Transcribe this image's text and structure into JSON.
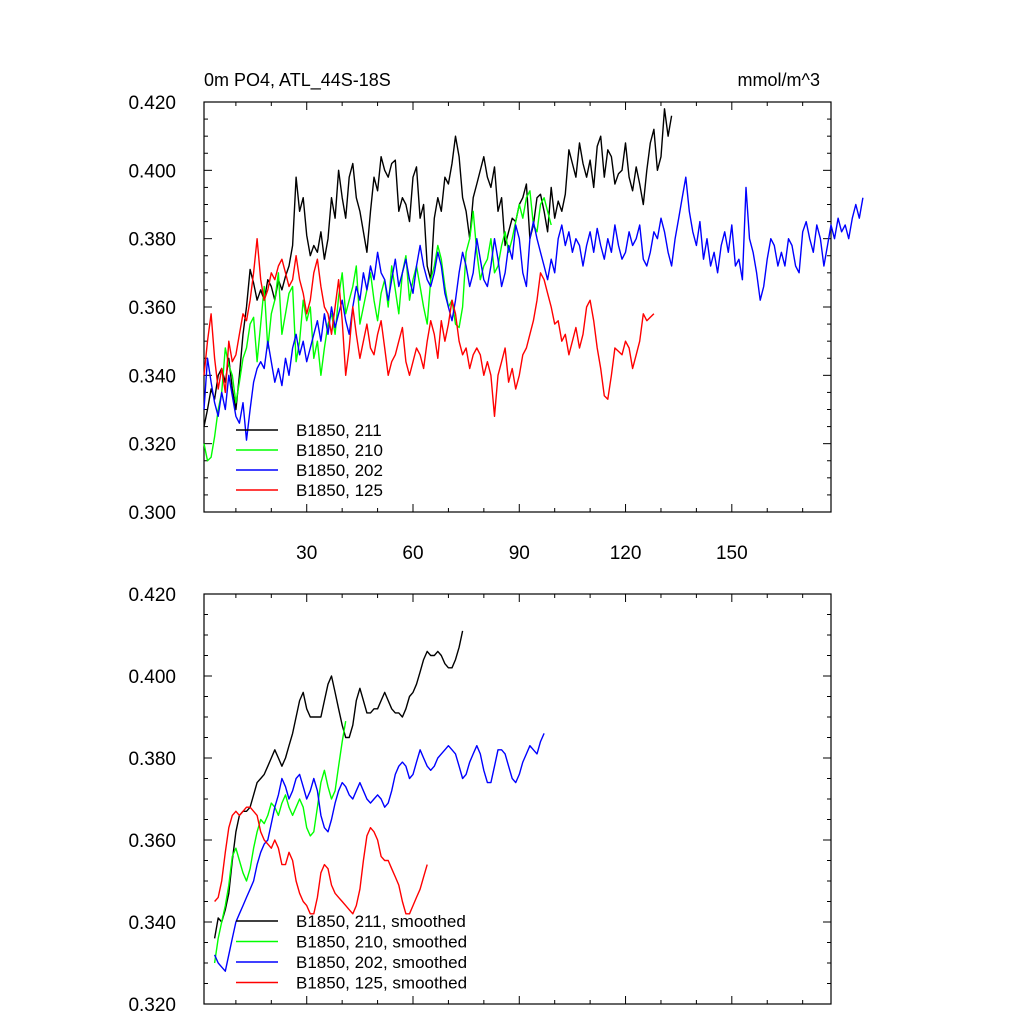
{
  "chart_data": [
    {
      "type": "line",
      "title": "0m PO4, ATL_44S-18S",
      "units": "mmol/m^3",
      "xlim": [
        1,
        178
      ],
      "ylim": [
        0.3,
        0.42
      ],
      "xticks": [
        30,
        60,
        90,
        120,
        150
      ],
      "yticks": [
        0.3,
        0.32,
        0.34,
        0.36,
        0.38,
        0.4,
        0.42
      ],
      "grid": false,
      "legend_position": "bottom-left",
      "series": [
        {
          "name": "B1850, 211",
          "color": "#000000",
          "x_start": 1,
          "values": [
            0.325,
            0.33,
            0.336,
            0.333,
            0.34,
            0.342,
            0.338,
            0.345,
            0.336,
            0.33,
            0.34,
            0.352,
            0.36,
            0.371,
            0.367,
            0.362,
            0.365,
            0.362,
            0.368,
            0.366,
            0.362,
            0.368,
            0.365,
            0.369,
            0.372,
            0.378,
            0.398,
            0.388,
            0.392,
            0.381,
            0.375,
            0.378,
            0.376,
            0.382,
            0.374,
            0.38,
            0.392,
            0.386,
            0.4,
            0.392,
            0.386,
            0.398,
            0.402,
            0.392,
            0.388,
            0.382,
            0.376,
            0.388,
            0.398,
            0.394,
            0.404,
            0.4,
            0.398,
            0.402,
            0.403,
            0.388,
            0.392,
            0.39,
            0.385,
            0.398,
            0.401,
            0.386,
            0.39,
            0.372,
            0.368,
            0.386,
            0.392,
            0.388,
            0.398,
            0.396,
            0.402,
            0.41,
            0.404,
            0.392,
            0.388,
            0.38,
            0.392,
            0.396,
            0.4,
            0.404,
            0.398,
            0.395,
            0.401,
            0.388,
            0.392,
            0.378,
            0.382,
            0.386,
            0.385,
            0.39,
            0.392,
            0.396,
            0.38,
            0.384,
            0.392,
            0.393,
            0.388,
            0.382,
            0.395,
            0.386,
            0.391,
            0.388,
            0.393,
            0.406,
            0.402,
            0.398,
            0.408,
            0.402,
            0.398,
            0.403,
            0.395,
            0.407,
            0.41,
            0.398,
            0.406,
            0.404,
            0.396,
            0.399,
            0.4,
            0.408,
            0.398,
            0.394,
            0.401,
            0.396,
            0.39,
            0.4,
            0.408,
            0.412,
            0.4,
            0.404,
            0.418,
            0.41,
            0.416
          ]
        },
        {
          "name": "B1850, 210",
          "color": "#00ff00",
          "x_start": 1,
          "values": [
            0.32,
            0.315,
            0.316,
            0.322,
            0.33,
            0.335,
            0.348,
            0.343,
            0.34,
            0.332,
            0.338,
            0.345,
            0.348,
            0.355,
            0.357,
            0.344,
            0.355,
            0.366,
            0.348,
            0.358,
            0.362,
            0.37,
            0.352,
            0.358,
            0.364,
            0.366,
            0.344,
            0.35,
            0.362,
            0.356,
            0.36,
            0.345,
            0.35,
            0.34,
            0.348,
            0.355,
            0.358,
            0.352,
            0.363,
            0.37,
            0.358,
            0.362,
            0.366,
            0.372,
            0.355,
            0.36,
            0.365,
            0.37,
            0.362,
            0.356,
            0.364,
            0.368,
            0.36,
            0.372,
            0.365,
            0.358,
            0.37,
            0.375,
            0.362,
            0.368,
            0.372,
            0.366,
            0.36,
            0.355,
            0.368,
            0.372,
            0.378,
            0.374,
            0.366,
            0.36,
            0.362,
            0.355,
            0.354,
            0.36,
            0.376,
            0.38,
            0.388,
            0.376,
            0.368,
            0.372,
            0.374,
            0.38,
            0.37,
            0.372,
            0.378,
            0.382,
            0.376,
            0.38,
            0.385,
            0.39,
            0.386,
            0.392,
            0.394,
            0.384,
            0.382,
            0.39,
            0.392,
            0.388,
            0.384
          ]
        },
        {
          "name": "B1850, 202",
          "color": "#0000ff",
          "x_start": 1,
          "values": [
            0.33,
            0.345,
            0.338,
            0.332,
            0.328,
            0.335,
            0.33,
            0.34,
            0.334,
            0.328,
            0.326,
            0.332,
            0.321,
            0.33,
            0.338,
            0.342,
            0.344,
            0.342,
            0.35,
            0.344,
            0.338,
            0.342,
            0.337,
            0.345,
            0.34,
            0.348,
            0.352,
            0.346,
            0.35,
            0.344,
            0.348,
            0.352,
            0.356,
            0.35,
            0.358,
            0.352,
            0.36,
            0.354,
            0.358,
            0.362,
            0.356,
            0.352,
            0.36,
            0.366,
            0.362,
            0.37,
            0.365,
            0.372,
            0.368,
            0.376,
            0.37,
            0.368,
            0.362,
            0.368,
            0.374,
            0.366,
            0.37,
            0.374,
            0.368,
            0.364,
            0.372,
            0.378,
            0.372,
            0.368,
            0.366,
            0.37,
            0.376,
            0.372,
            0.364,
            0.36,
            0.356,
            0.362,
            0.37,
            0.376,
            0.372,
            0.366,
            0.37,
            0.38,
            0.374,
            0.368,
            0.366,
            0.372,
            0.38,
            0.374,
            0.366,
            0.37,
            0.378,
            0.374,
            0.384,
            0.38,
            0.37,
            0.366,
            0.38,
            0.385,
            0.38,
            0.376,
            0.372,
            0.368,
            0.374,
            0.37,
            0.38,
            0.384,
            0.378,
            0.382,
            0.376,
            0.38,
            0.378,
            0.372,
            0.378,
            0.382,
            0.376,
            0.383,
            0.378,
            0.374,
            0.38,
            0.376,
            0.384,
            0.378,
            0.374,
            0.376,
            0.382,
            0.378,
            0.38,
            0.384,
            0.374,
            0.372,
            0.376,
            0.382,
            0.38,
            0.386,
            0.382,
            0.376,
            0.372,
            0.38,
            0.386,
            0.392,
            0.398,
            0.388,
            0.382,
            0.378,
            0.385,
            0.374,
            0.38,
            0.372,
            0.376,
            0.37,
            0.378,
            0.382,
            0.376,
            0.384,
            0.372,
            0.374,
            0.368,
            0.395,
            0.38,
            0.376,
            0.37,
            0.362,
            0.366,
            0.374,
            0.38,
            0.378,
            0.372,
            0.376,
            0.372,
            0.38,
            0.378,
            0.372,
            0.37,
            0.382,
            0.385,
            0.38,
            0.376,
            0.384,
            0.38,
            0.372,
            0.378,
            0.384,
            0.38,
            0.386,
            0.382,
            0.384,
            0.38,
            0.386,
            0.39,
            0.386,
            0.392
          ]
        },
        {
          "name": "B1850, 125",
          "color": "#ff0000",
          "x_start": 1,
          "values": [
            0.34,
            0.35,
            0.358,
            0.345,
            0.336,
            0.342,
            0.335,
            0.35,
            0.344,
            0.346,
            0.352,
            0.358,
            0.356,
            0.362,
            0.37,
            0.38,
            0.368,
            0.362,
            0.365,
            0.37,
            0.368,
            0.372,
            0.374,
            0.37,
            0.366,
            0.368,
            0.375,
            0.368,
            0.364,
            0.358,
            0.362,
            0.37,
            0.374,
            0.366,
            0.36,
            0.358,
            0.352,
            0.36,
            0.368,
            0.356,
            0.34,
            0.348,
            0.36,
            0.352,
            0.345,
            0.35,
            0.355,
            0.348,
            0.346,
            0.352,
            0.356,
            0.348,
            0.34,
            0.344,
            0.346,
            0.35,
            0.354,
            0.344,
            0.34,
            0.344,
            0.348,
            0.346,
            0.342,
            0.35,
            0.356,
            0.352,
            0.345,
            0.356,
            0.35,
            0.355,
            0.362,
            0.358,
            0.35,
            0.346,
            0.348,
            0.342,
            0.346,
            0.348,
            0.346,
            0.34,
            0.344,
            0.34,
            0.328,
            0.34,
            0.344,
            0.348,
            0.338,
            0.342,
            0.336,
            0.34,
            0.346,
            0.348,
            0.352,
            0.356,
            0.362,
            0.37,
            0.368,
            0.364,
            0.36,
            0.355,
            0.356,
            0.35,
            0.352,
            0.346,
            0.35,
            0.354,
            0.348,
            0.352,
            0.36,
            0.362,
            0.356,
            0.348,
            0.342,
            0.334,
            0.333,
            0.34,
            0.348,
            0.347,
            0.346,
            0.35,
            0.348,
            0.342,
            0.346,
            0.35,
            0.358,
            0.356,
            0.357,
            0.358
          ]
        }
      ]
    },
    {
      "type": "line",
      "xlim": [
        1,
        178
      ],
      "ylim": [
        0.32,
        0.42
      ],
      "yticks": [
        0.32,
        0.34,
        0.36,
        0.38,
        0.4,
        0.42
      ],
      "grid": false,
      "legend_position": "bottom-left",
      "series": [
        {
          "name": "B1850, 211, smoothed",
          "color": "#000000",
          "x_start": 4,
          "values": [
            0.336,
            0.341,
            0.34,
            0.343,
            0.347,
            0.355,
            0.362,
            0.366,
            0.367,
            0.367,
            0.368,
            0.371,
            0.374,
            0.375,
            0.376,
            0.378,
            0.38,
            0.382,
            0.38,
            0.378,
            0.38,
            0.383,
            0.386,
            0.39,
            0.394,
            0.396,
            0.392,
            0.39,
            0.39,
            0.39,
            0.39,
            0.394,
            0.398,
            0.4,
            0.396,
            0.392,
            0.388,
            0.385,
            0.385,
            0.388,
            0.394,
            0.397,
            0.394,
            0.391,
            0.391,
            0.392,
            0.392,
            0.394,
            0.396,
            0.394,
            0.392,
            0.391,
            0.391,
            0.39,
            0.392,
            0.395,
            0.396,
            0.398,
            0.401,
            0.404,
            0.406,
            0.405,
            0.405,
            0.406,
            0.405,
            0.403,
            0.402,
            0.402,
            0.404,
            0.407,
            0.411
          ]
        },
        {
          "name": "B1850, 210, smoothed",
          "color": "#00ff00",
          "x_start": 4,
          "values": [
            0.33,
            0.336,
            0.34,
            0.344,
            0.349,
            0.356,
            0.358,
            0.355,
            0.352,
            0.35,
            0.353,
            0.358,
            0.362,
            0.365,
            0.364,
            0.366,
            0.369,
            0.368,
            0.366,
            0.369,
            0.371,
            0.368,
            0.366,
            0.368,
            0.37,
            0.368,
            0.363,
            0.361,
            0.362,
            0.368,
            0.374,
            0.377,
            0.373,
            0.37,
            0.372,
            0.378,
            0.384,
            0.389
          ]
        },
        {
          "name": "B1850, 202, smoothed",
          "color": "#0000ff",
          "x_start": 4,
          "values": [
            0.332,
            0.33,
            0.329,
            0.328,
            0.332,
            0.336,
            0.34,
            0.342,
            0.344,
            0.346,
            0.348,
            0.35,
            0.354,
            0.357,
            0.359,
            0.36,
            0.364,
            0.368,
            0.371,
            0.375,
            0.373,
            0.37,
            0.372,
            0.375,
            0.376,
            0.373,
            0.37,
            0.372,
            0.375,
            0.372,
            0.366,
            0.363,
            0.362,
            0.365,
            0.369,
            0.372,
            0.374,
            0.373,
            0.371,
            0.37,
            0.372,
            0.374,
            0.372,
            0.37,
            0.369,
            0.37,
            0.371,
            0.37,
            0.368,
            0.369,
            0.372,
            0.376,
            0.378,
            0.379,
            0.378,
            0.375,
            0.376,
            0.379,
            0.382,
            0.38,
            0.378,
            0.377,
            0.378,
            0.38,
            0.381,
            0.382,
            0.383,
            0.382,
            0.381,
            0.378,
            0.375,
            0.376,
            0.379,
            0.381,
            0.383,
            0.381,
            0.377,
            0.374,
            0.374,
            0.378,
            0.382,
            0.382,
            0.381,
            0.378,
            0.375,
            0.374,
            0.376,
            0.379,
            0.381,
            0.383,
            0.382,
            0.381,
            0.384,
            0.386
          ]
        },
        {
          "name": "B1850, 125, smoothed",
          "color": "#ff0000",
          "x_start": 4,
          "values": [
            0.345,
            0.346,
            0.35,
            0.357,
            0.363,
            0.366,
            0.367,
            0.366,
            0.367,
            0.368,
            0.368,
            0.367,
            0.366,
            0.362,
            0.36,
            0.359,
            0.358,
            0.36,
            0.358,
            0.354,
            0.354,
            0.357,
            0.355,
            0.35,
            0.347,
            0.345,
            0.344,
            0.342,
            0.342,
            0.346,
            0.352,
            0.354,
            0.353,
            0.349,
            0.347,
            0.346,
            0.345,
            0.344,
            0.343,
            0.342,
            0.344,
            0.348,
            0.355,
            0.361,
            0.363,
            0.362,
            0.36,
            0.356,
            0.355,
            0.355,
            0.353,
            0.351,
            0.349,
            0.345,
            0.342,
            0.342,
            0.344,
            0.346,
            0.348,
            0.351,
            0.354
          ]
        }
      ]
    }
  ]
}
